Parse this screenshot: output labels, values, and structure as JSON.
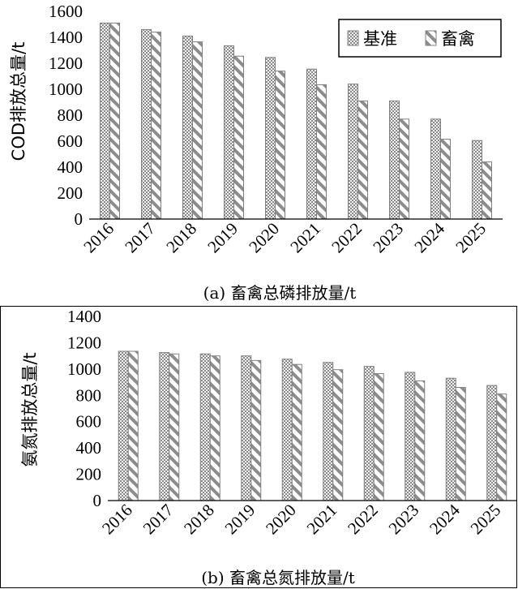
{
  "chart_data": [
    {
      "type": "bar",
      "caption": "(a) 畜禽总磷排放量/t",
      "ylabel": "COD排放总量/t",
      "ylim": [
        0,
        1600
      ],
      "yticks": [
        0,
        200,
        400,
        600,
        800,
        1000,
        1200,
        1400,
        1600
      ],
      "categories": [
        "2016",
        "2017",
        "2018",
        "2019",
        "2020",
        "2021",
        "2022",
        "2023",
        "2024",
        "2025"
      ],
      "series": [
        {
          "name": "基准",
          "values": [
            1510,
            1460,
            1410,
            1335,
            1245,
            1155,
            1040,
            910,
            770,
            605
          ]
        },
        {
          "name": "畜禽",
          "values": [
            1510,
            1440,
            1365,
            1255,
            1140,
            1035,
            910,
            770,
            615,
            440
          ]
        }
      ],
      "legend": "top-right"
    },
    {
      "type": "bar",
      "caption": "(b) 畜禽总氮排放量/t",
      "ylabel": "氨氮排放总量/t",
      "ylim": [
        0,
        1400
      ],
      "yticks": [
        0,
        200,
        400,
        600,
        800,
        1000,
        1200,
        1400
      ],
      "categories": [
        "2016",
        "2017",
        "2018",
        "2019",
        "2020",
        "2021",
        "2022",
        "2023",
        "2024",
        "2025"
      ],
      "series": [
        {
          "name": "基准",
          "values": [
            1135,
            1125,
            1115,
            1100,
            1075,
            1050,
            1020,
            975,
            930,
            875
          ]
        },
        {
          "name": "畜禽",
          "values": [
            1135,
            1115,
            1100,
            1065,
            1035,
            995,
            965,
            910,
            860,
            810
          ]
        }
      ]
    }
  ],
  "colors": {
    "bar_fill": "#d9d9d9",
    "bar_edge": "#7f7f7f",
    "pattern": "#555555"
  }
}
